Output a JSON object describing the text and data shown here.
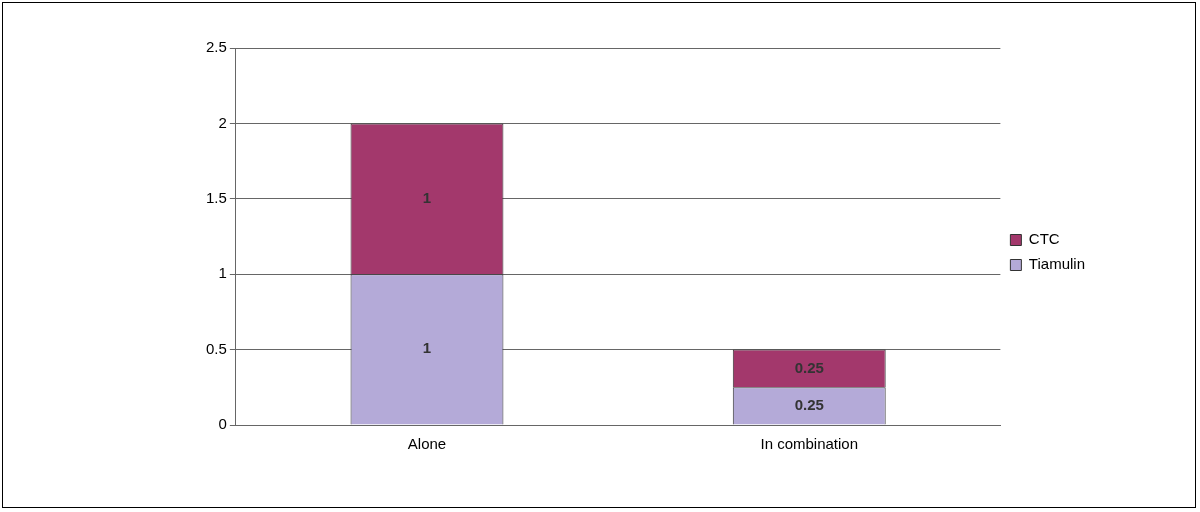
{
  "chart_data": {
    "type": "bar",
    "stacked": true,
    "categories": [
      "Alone",
      "In combination"
    ],
    "series": [
      {
        "name": "Tiamulin",
        "color": "#b4aad8",
        "values": [
          1,
          0.25
        ]
      },
      {
        "name": "CTC",
        "color": "#a3386c",
        "values": [
          1,
          0.25
        ]
      }
    ],
    "ylim": [
      0,
      2.5
    ],
    "yticks": [
      0,
      0.5,
      1,
      1.5,
      2,
      2.5
    ],
    "grid": "y",
    "legend": "right",
    "data_labels": true
  }
}
